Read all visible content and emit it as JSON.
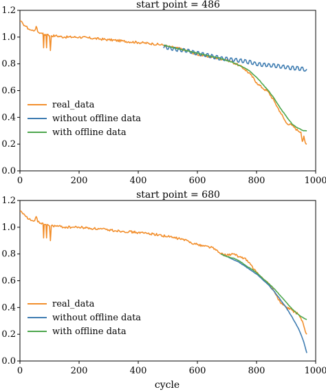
{
  "figure": {
    "xlabel": "cycle",
    "colors": {
      "real": "#F28E2B",
      "without": "#3E7CB1",
      "with": "#4CA64C"
    }
  },
  "chart_data": [
    {
      "type": "line",
      "title": "start point = 486",
      "xlabel": "",
      "ylabel": "",
      "xlim": [
        0,
        1000
      ],
      "ylim": [
        0.0,
        1.2
      ],
      "xticks": [
        "0",
        "200",
        "400",
        "600",
        "800",
        "1000"
      ],
      "yticks": [
        "0.0",
        "0.2",
        "0.4",
        "0.6",
        "0.8",
        "1.0",
        "1.2"
      ],
      "grid": false,
      "legend_placement": "center-left",
      "series": [
        {
          "name": "real_data",
          "color": "#F28E2B",
          "x": [
            0,
            10,
            20,
            30,
            40,
            50,
            55,
            60,
            70,
            78,
            80,
            82,
            88,
            90,
            92,
            100,
            103,
            106,
            120,
            150,
            200,
            250,
            300,
            350,
            400,
            450,
            486,
            500,
            550,
            600,
            650,
            700,
            720,
            740,
            760,
            780,
            800,
            820,
            840,
            860,
            880,
            900,
            920,
            940,
            950,
            955,
            960,
            965,
            970
          ],
          "y": [
            1.12,
            1.1,
            1.08,
            1.06,
            1.05,
            1.05,
            1.08,
            1.04,
            1.03,
            1.03,
            0.92,
            1.02,
            1.02,
            0.92,
            1.02,
            1.01,
            0.9,
            1.01,
            1.01,
            1.0,
            1.0,
            0.99,
            0.98,
            0.97,
            0.96,
            0.95,
            0.94,
            0.93,
            0.91,
            0.87,
            0.85,
            0.83,
            0.81,
            0.79,
            0.76,
            0.72,
            0.66,
            0.62,
            0.59,
            0.52,
            0.44,
            0.36,
            0.34,
            0.3,
            0.29,
            0.22,
            0.26,
            0.21,
            0.2
          ]
        },
        {
          "name": "without offline data",
          "color": "#3E7CB1",
          "x": [
            486,
            520,
            560,
            600,
            640,
            680,
            720,
            760,
            800,
            840,
            880,
            920,
            960,
            970
          ],
          "y": [
            0.93,
            0.91,
            0.9,
            0.88,
            0.86,
            0.84,
            0.83,
            0.82,
            0.8,
            0.79,
            0.78,
            0.77,
            0.76,
            0.76
          ]
        },
        {
          "name": "with offline data",
          "color": "#4CA64C",
          "x": [
            486,
            520,
            560,
            600,
            640,
            680,
            720,
            760,
            780,
            800,
            820,
            840,
            860,
            880,
            900,
            920,
            940,
            960,
            970
          ],
          "y": [
            0.94,
            0.92,
            0.9,
            0.88,
            0.86,
            0.84,
            0.81,
            0.77,
            0.74,
            0.7,
            0.65,
            0.6,
            0.54,
            0.47,
            0.41,
            0.35,
            0.32,
            0.3,
            0.3
          ]
        }
      ]
    },
    {
      "type": "line",
      "title": "start point = 680",
      "xlabel": "cycle",
      "ylabel": "",
      "xlim": [
        0,
        1000
      ],
      "ylim": [
        0.0,
        1.2
      ],
      "xticks": [
        "0",
        "200",
        "400",
        "600",
        "800",
        "1000"
      ],
      "yticks": [
        "0.0",
        "0.2",
        "0.4",
        "0.6",
        "0.8",
        "1.0",
        "1.2"
      ],
      "grid": false,
      "legend_placement": "lower-left",
      "series": [
        {
          "name": "real_data",
          "color": "#F28E2B",
          "x": [
            0,
            10,
            20,
            30,
            40,
            50,
            55,
            60,
            70,
            78,
            80,
            82,
            88,
            90,
            92,
            100,
            103,
            106,
            120,
            150,
            200,
            250,
            300,
            350,
            400,
            450,
            500,
            550,
            600,
            650,
            680,
            700,
            720,
            740,
            760,
            780,
            800,
            820,
            840,
            860,
            880,
            900,
            920,
            940,
            950,
            955,
            960,
            965,
            970
          ],
          "y": [
            1.12,
            1.1,
            1.08,
            1.06,
            1.05,
            1.05,
            1.08,
            1.04,
            1.03,
            1.03,
            0.92,
            1.02,
            1.02,
            0.92,
            1.02,
            1.01,
            0.9,
            1.01,
            1.01,
            1.0,
            1.0,
            0.99,
            0.98,
            0.97,
            0.96,
            0.95,
            0.93,
            0.91,
            0.87,
            0.85,
            0.8,
            0.79,
            0.8,
            0.78,
            0.77,
            0.72,
            0.66,
            0.62,
            0.58,
            0.52,
            0.44,
            0.4,
            0.38,
            0.35,
            0.32,
            0.3,
            0.26,
            0.22,
            0.2
          ]
        },
        {
          "name": "without offline data",
          "color": "#3E7CB1",
          "x": [
            680,
            700,
            720,
            740,
            760,
            780,
            800,
            820,
            840,
            860,
            880,
            900,
            920,
            940,
            950,
            960,
            970
          ],
          "y": [
            0.8,
            0.78,
            0.76,
            0.74,
            0.71,
            0.68,
            0.65,
            0.61,
            0.57,
            0.52,
            0.46,
            0.4,
            0.33,
            0.25,
            0.2,
            0.14,
            0.06
          ]
        },
        {
          "name": "with offline data",
          "color": "#4CA64C",
          "x": [
            680,
            700,
            720,
            740,
            760,
            780,
            800,
            820,
            840,
            860,
            880,
            900,
            920,
            940,
            960,
            970
          ],
          "y": [
            0.8,
            0.78,
            0.77,
            0.75,
            0.72,
            0.69,
            0.66,
            0.62,
            0.58,
            0.54,
            0.49,
            0.44,
            0.39,
            0.35,
            0.32,
            0.31
          ]
        }
      ]
    }
  ]
}
